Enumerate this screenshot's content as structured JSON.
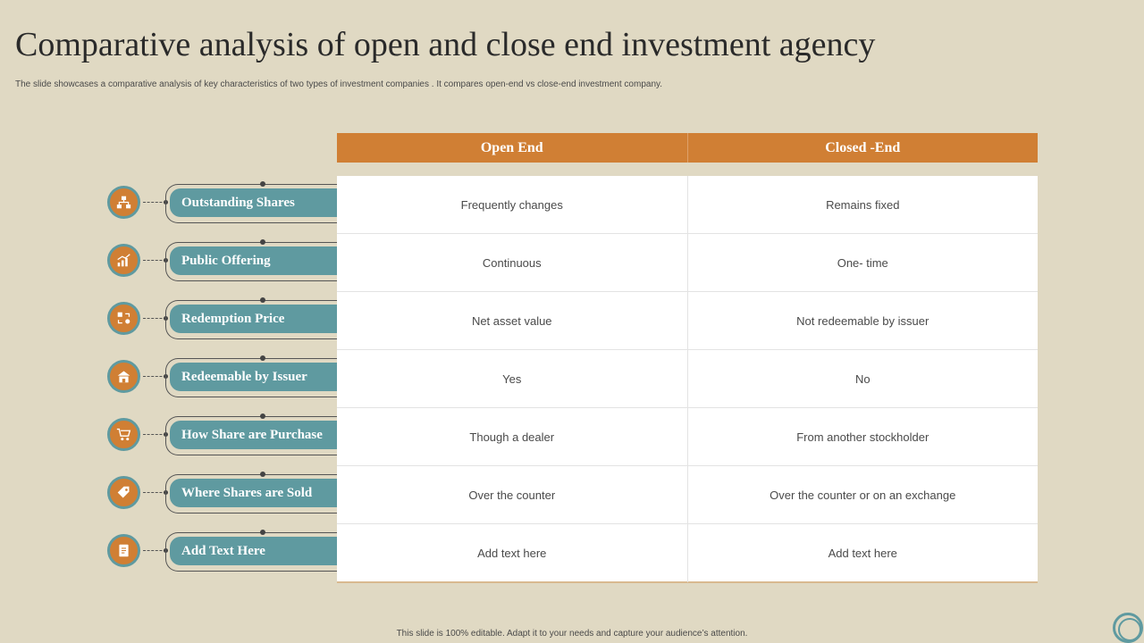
{
  "slide": {
    "title": "Comparative analysis of open and close end investment agency",
    "subtitle": "The slide showcases a comparative analysis of key characteristics of two types of investment companies . It compares open-end vs close-end investment company.",
    "footer": "This slide is 100% editable. Adapt it to your needs and capture your audience’s attention."
  },
  "table": {
    "headers": [
      "Open End",
      "Closed -End"
    ],
    "rows": [
      {
        "label": "Outstanding Shares",
        "icon": "network-icon",
        "open": "Frequently changes",
        "closed": "Remains fixed"
      },
      {
        "label": "Public Offering",
        "icon": "growth-chart-icon",
        "open": "Continuous",
        "closed": "One- time"
      },
      {
        "label": "Redemption Price",
        "icon": "exchange-icon",
        "open": "Net asset value",
        "closed": "Not redeemable  by issuer"
      },
      {
        "label": "Redeemable by Issuer",
        "icon": "building-icon",
        "open": "Yes",
        "closed": "No"
      },
      {
        "label": "How Share are Purchase",
        "icon": "shopping-cart-icon",
        "open": "Though  a dealer",
        "closed": "From another stockholder"
      },
      {
        "label": "Where Shares are Sold",
        "icon": "price-tag-icon",
        "open": "Over the counter",
        "closed": "Over the counter or on an exchange"
      },
      {
        "label": "Add Text Here",
        "icon": "document-icon",
        "open": "Add text here",
        "closed": "Add text here"
      }
    ]
  },
  "colors": {
    "background": "#e0d9c3",
    "header": "#d07f34",
    "pill": "#5f9aa0",
    "icon_circle": "#d07f34"
  }
}
